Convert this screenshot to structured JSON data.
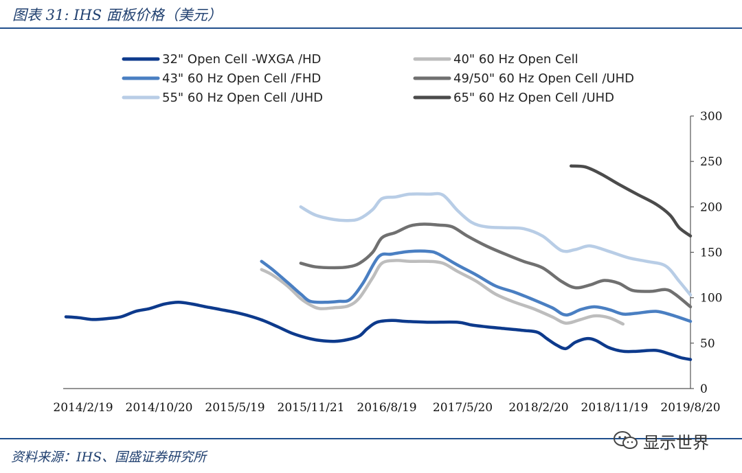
{
  "header": {
    "title": "图表 31: IHS 面板价格（美元）"
  },
  "footer": {
    "source": "资料来源：IHS、国盛证券研究所",
    "watermark": "显示世界"
  },
  "chart_data": {
    "type": "line",
    "x_tick_labels": [
      "2014/2/19",
      "2014/10/20",
      "2015/5/19",
      "2015/11/21",
      "2016/8/19",
      "2017/5/20",
      "2018/2/20",
      "2018/11/19",
      "2019/8/20"
    ],
    "x_start": "2014-02-19",
    "x_end": "2019-08-20",
    "ylim": [
      0,
      300
    ],
    "y_ticks": [
      0,
      50,
      100,
      150,
      200,
      250,
      300
    ],
    "y_axis_position": "right",
    "grid": false,
    "legend_position": "top",
    "series": [
      {
        "name": "32\" Open Cell -WXGA /HD",
        "color": "#0d3a8c",
        "points": [
          [
            "2014-02-19",
            79
          ],
          [
            "2014-04-01",
            78
          ],
          [
            "2014-05-15",
            76
          ],
          [
            "2014-07-01",
            77
          ],
          [
            "2014-08-15",
            79
          ],
          [
            "2014-10-01",
            85
          ],
          [
            "2014-11-15",
            88
          ],
          [
            "2015-01-01",
            93
          ],
          [
            "2015-02-15",
            95
          ],
          [
            "2015-04-01",
            93
          ],
          [
            "2015-05-15",
            90
          ],
          [
            "2015-07-01",
            87
          ],
          [
            "2015-08-15",
            84
          ],
          [
            "2015-10-01",
            80
          ],
          [
            "2015-11-15",
            75
          ],
          [
            "2016-01-01",
            68
          ],
          [
            "2016-02-15",
            61
          ],
          [
            "2016-04-01",
            56
          ],
          [
            "2016-05-15",
            53
          ],
          [
            "2016-07-01",
            52
          ],
          [
            "2016-08-15",
            54
          ],
          [
            "2016-09-20",
            58
          ],
          [
            "2016-10-15",
            66
          ],
          [
            "2016-11-15",
            73
          ],
          [
            "2017-01-01",
            75
          ],
          [
            "2017-02-15",
            74
          ],
          [
            "2017-05-01",
            73
          ],
          [
            "2017-08-01",
            73
          ],
          [
            "2017-09-15",
            70
          ],
          [
            "2017-11-01",
            68
          ],
          [
            "2018-01-01",
            66
          ],
          [
            "2018-03-01",
            64
          ],
          [
            "2018-04-15",
            62
          ],
          [
            "2018-05-15",
            55
          ],
          [
            "2018-06-15",
            48
          ],
          [
            "2018-07-15",
            44
          ],
          [
            "2018-08-15",
            51
          ],
          [
            "2018-09-20",
            55
          ],
          [
            "2018-10-20",
            53
          ],
          [
            "2018-12-01",
            45
          ],
          [
            "2019-01-15",
            41
          ],
          [
            "2019-03-01",
            41
          ],
          [
            "2019-05-01",
            42
          ],
          [
            "2019-06-15",
            38
          ],
          [
            "2019-07-20",
            34
          ],
          [
            "2019-08-20",
            32
          ]
        ]
      },
      {
        "name": "40\" 60 Hz Open Cell",
        "color": "#bdbdbd",
        "points": [
          [
            "2015-11-10",
            131
          ],
          [
            "2015-12-15",
            125
          ],
          [
            "2016-02-01",
            113
          ],
          [
            "2016-03-15",
            99
          ],
          [
            "2016-04-15",
            92
          ],
          [
            "2016-05-15",
            88
          ],
          [
            "2016-07-01",
            89
          ],
          [
            "2016-08-15",
            91
          ],
          [
            "2016-09-20",
            100
          ],
          [
            "2016-11-01",
            122
          ],
          [
            "2016-12-01",
            138
          ],
          [
            "2017-01-15",
            141
          ],
          [
            "2017-03-01",
            140
          ],
          [
            "2017-05-01",
            140
          ],
          [
            "2017-06-15",
            138
          ],
          [
            "2017-08-01",
            129
          ],
          [
            "2017-10-01",
            118
          ],
          [
            "2017-12-01",
            104
          ],
          [
            "2018-02-01",
            95
          ],
          [
            "2018-04-01",
            88
          ],
          [
            "2018-06-01",
            79
          ],
          [
            "2018-07-15",
            72
          ],
          [
            "2018-09-01",
            76
          ],
          [
            "2018-10-15",
            80
          ],
          [
            "2018-12-01",
            78
          ],
          [
            "2019-01-15",
            71
          ]
        ]
      },
      {
        "name": "43\" 60 Hz Open Cell /FHD",
        "color": "#4a7fc2",
        "points": [
          [
            "2015-11-10",
            140
          ],
          [
            "2015-12-15",
            131
          ],
          [
            "2016-02-01",
            117
          ],
          [
            "2016-03-15",
            104
          ],
          [
            "2016-04-15",
            96
          ],
          [
            "2016-06-01",
            95
          ],
          [
            "2016-07-15",
            96
          ],
          [
            "2016-08-20",
            98
          ],
          [
            "2016-10-01",
            116
          ],
          [
            "2016-11-20",
            145
          ],
          [
            "2017-01-01",
            148
          ],
          [
            "2017-03-01",
            151
          ],
          [
            "2017-05-01",
            151
          ],
          [
            "2017-06-01",
            148
          ],
          [
            "2017-08-01",
            136
          ],
          [
            "2017-10-01",
            125
          ],
          [
            "2017-12-01",
            113
          ],
          [
            "2018-02-01",
            106
          ],
          [
            "2018-04-01",
            98
          ],
          [
            "2018-06-01",
            89
          ],
          [
            "2018-07-15",
            81
          ],
          [
            "2018-09-01",
            87
          ],
          [
            "2018-10-15",
            90
          ],
          [
            "2018-12-01",
            87
          ],
          [
            "2019-01-15",
            82
          ],
          [
            "2019-03-01",
            83
          ],
          [
            "2019-05-01",
            85
          ],
          [
            "2019-06-20",
            81
          ],
          [
            "2019-08-20",
            74
          ]
        ]
      },
      {
        "name": "49/50\" 60 Hz Open Cell /UHD",
        "color": "#707070",
        "points": [
          [
            "2016-03-15",
            138
          ],
          [
            "2016-05-01",
            134
          ],
          [
            "2016-07-01",
            133
          ],
          [
            "2016-08-15",
            134
          ],
          [
            "2016-09-20",
            138
          ],
          [
            "2016-11-01",
            150
          ],
          [
            "2016-12-01",
            166
          ],
          [
            "2017-01-15",
            172
          ],
          [
            "2017-03-01",
            179
          ],
          [
            "2017-04-15",
            181
          ],
          [
            "2017-06-01",
            180
          ],
          [
            "2017-07-15",
            178
          ],
          [
            "2017-09-01",
            168
          ],
          [
            "2017-11-01",
            157
          ],
          [
            "2018-01-01",
            148
          ],
          [
            "2018-03-01",
            140
          ],
          [
            "2018-05-01",
            133
          ],
          [
            "2018-07-01",
            118
          ],
          [
            "2018-08-15",
            111
          ],
          [
            "2018-10-01",
            114
          ],
          [
            "2018-11-15",
            119
          ],
          [
            "2019-01-01",
            116
          ],
          [
            "2019-02-15",
            108
          ],
          [
            "2019-04-15",
            107
          ],
          [
            "2019-06-01",
            109
          ],
          [
            "2019-07-01",
            104
          ],
          [
            "2019-08-20",
            90
          ]
        ]
      },
      {
        "name": "55\" 60 Hz Open Cell /UHD",
        "color": "#b8cde6",
        "points": [
          [
            "2016-03-15",
            200
          ],
          [
            "2016-05-01",
            191
          ],
          [
            "2016-07-01",
            186
          ],
          [
            "2016-08-15",
            185
          ],
          [
            "2016-09-20",
            187
          ],
          [
            "2016-11-01",
            197
          ],
          [
            "2016-12-01",
            209
          ],
          [
            "2017-01-15",
            211
          ],
          [
            "2017-03-01",
            214
          ],
          [
            "2017-05-01",
            214
          ],
          [
            "2017-06-15",
            213
          ],
          [
            "2017-08-01",
            196
          ],
          [
            "2017-09-15",
            183
          ],
          [
            "2017-11-01",
            178
          ],
          [
            "2018-01-01",
            177
          ],
          [
            "2018-03-01",
            176
          ],
          [
            "2018-05-01",
            168
          ],
          [
            "2018-07-01",
            152
          ],
          [
            "2018-08-15",
            153
          ],
          [
            "2018-10-01",
            157
          ],
          [
            "2018-12-01",
            151
          ],
          [
            "2019-02-01",
            144
          ],
          [
            "2019-04-01",
            140
          ],
          [
            "2019-06-01",
            135
          ],
          [
            "2019-07-15",
            118
          ],
          [
            "2019-08-20",
            103
          ]
        ]
      },
      {
        "name": "65\" 60 Hz Open Cell /UHD",
        "color": "#4b4b4b",
        "points": [
          [
            "2018-08-01",
            245
          ],
          [
            "2018-09-15",
            244
          ],
          [
            "2018-11-01",
            237
          ],
          [
            "2019-01-01",
            225
          ],
          [
            "2019-03-01",
            214
          ],
          [
            "2019-05-01",
            203
          ],
          [
            "2019-06-15",
            191
          ],
          [
            "2019-07-15",
            177
          ],
          [
            "2019-08-20",
            168
          ]
        ]
      }
    ]
  }
}
